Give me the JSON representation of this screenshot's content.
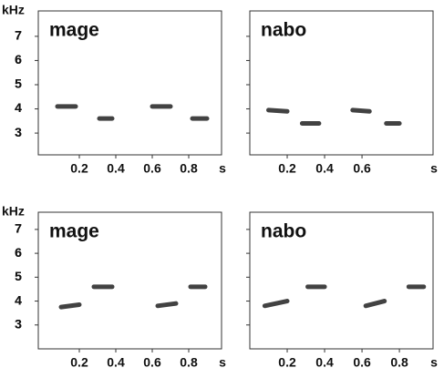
{
  "chart_data": [
    {
      "type": "spectrogram",
      "title": "mage",
      "x_label": "s",
      "y_label": "kHz",
      "color": "#222222",
      "xlim": [
        -0.025,
        0.98
      ],
      "ylim": [
        2.1,
        8.05
      ],
      "xticks": [
        0.2,
        0.4,
        0.6,
        0.8
      ],
      "yticks": [
        3,
        4,
        5,
        6,
        7
      ],
      "syllables": [
        {
          "start": 0.08,
          "end": 0.18,
          "freq_start": 4.1,
          "freq_end": 4.1
        },
        {
          "start": 0.31,
          "end": 0.38,
          "freq_start": 3.6,
          "freq_end": 3.6
        },
        {
          "start": 0.6,
          "end": 0.7,
          "freq_start": 4.1,
          "freq_end": 4.1
        },
        {
          "start": 0.82,
          "end": 0.9,
          "freq_start": 3.6,
          "freq_end": 3.6
        }
      ]
    },
    {
      "type": "spectrogram",
      "title": "nabo",
      "x_label": "s",
      "color": "#222222",
      "xlim": [
        0,
        0.98
      ],
      "ylim": [
        2.1,
        8.05
      ],
      "xticks": [
        0.2,
        0.4,
        0.6
      ],
      "yticks": [
        3,
        4,
        5,
        6,
        7
      ],
      "syllables": [
        {
          "start": 0.1,
          "end": 0.2,
          "freq_start": 3.95,
          "freq_end": 3.9
        },
        {
          "start": 0.28,
          "end": 0.37,
          "freq_start": 3.4,
          "freq_end": 3.4
        },
        {
          "start": 0.55,
          "end": 0.64,
          "freq_start": 3.95,
          "freq_end": 3.9
        },
        {
          "start": 0.73,
          "end": 0.8,
          "freq_start": 3.4,
          "freq_end": 3.4
        }
      ]
    },
    {
      "type": "spectrogram",
      "title": "mage",
      "x_label": "s",
      "y_label": "kHz",
      "color": "#222222",
      "xlim": [
        -0.025,
        0.98
      ],
      "ylim": [
        2.0,
        7.72
      ],
      "xticks": [
        0.2,
        0.4,
        0.6,
        0.8
      ],
      "yticks": [
        3,
        4,
        5,
        6,
        7
      ],
      "syllables": [
        {
          "start": 0.1,
          "end": 0.2,
          "freq_start": 3.75,
          "freq_end": 3.85
        },
        {
          "start": 0.28,
          "end": 0.38,
          "freq_start": 4.6,
          "freq_end": 4.6
        },
        {
          "start": 0.63,
          "end": 0.73,
          "freq_start": 3.8,
          "freq_end": 3.9
        },
        {
          "start": 0.81,
          "end": 0.89,
          "freq_start": 4.6,
          "freq_end": 4.6
        }
      ]
    },
    {
      "type": "spectrogram",
      "title": "nabo",
      "x_label": "s",
      "color": "#222222",
      "xlim": [
        0,
        0.98
      ],
      "ylim": [
        2.0,
        7.72
      ],
      "xticks": [
        0.2,
        0.4,
        0.6,
        0.8
      ],
      "yticks": [
        3,
        4,
        5,
        6,
        7
      ],
      "syllables": [
        {
          "start": 0.08,
          "end": 0.2,
          "freq_start": 3.8,
          "freq_end": 4.0
        },
        {
          "start": 0.31,
          "end": 0.4,
          "freq_start": 4.6,
          "freq_end": 4.6
        },
        {
          "start": 0.62,
          "end": 0.72,
          "freq_start": 3.8,
          "freq_end": 4.0
        },
        {
          "start": 0.85,
          "end": 0.93,
          "freq_start": 4.6,
          "freq_end": 4.6
        }
      ]
    }
  ]
}
